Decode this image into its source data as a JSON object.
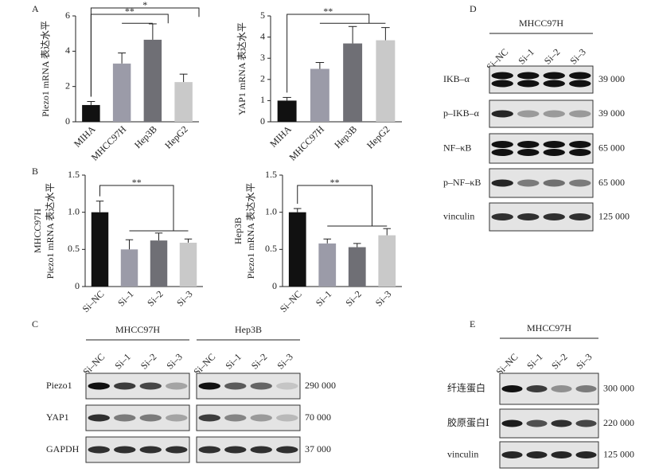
{
  "panel_labels": [
    "A",
    "B",
    "C",
    "D",
    "E"
  ],
  "chart_data": [
    {
      "type": "bar",
      "ylabel": [
        "Piezo1 mRNA 表达水平"
      ],
      "categories": [
        "MIHA",
        "MHCC97H",
        "Hep3B",
        "HepG2"
      ],
      "values": [
        0.95,
        3.3,
        4.65,
        2.25
      ],
      "errors": [
        0.2,
        0.6,
        0.9,
        0.45
      ],
      "colors": [
        "#111111",
        "#9b9ba8",
        "#6f6f75",
        "#c9c9c9"
      ],
      "ylim": [
        0,
        6
      ],
      "yticks": [
        0,
        2,
        4,
        6
      ],
      "annotations": [
        "**",
        "*"
      ]
    },
    {
      "type": "bar",
      "ylabel": [
        "YAP1 mRNA 表达水平"
      ],
      "categories": [
        "MIHA",
        "MHCC97H",
        "Hep3B",
        "HepG2"
      ],
      "values": [
        1.0,
        2.5,
        3.7,
        3.85
      ],
      "errors": [
        0.15,
        0.3,
        0.8,
        0.6
      ],
      "colors": [
        "#111111",
        "#9b9ba8",
        "#6f6f75",
        "#c9c9c9"
      ],
      "ylim": [
        0,
        5
      ],
      "yticks": [
        0,
        1,
        2,
        3,
        4,
        5
      ],
      "annotations": [
        "**"
      ]
    },
    {
      "type": "bar",
      "ylabel": [
        "MHCC97H",
        "Piezo1 mRNA 表达水平"
      ],
      "categories": [
        "Si–NC",
        "Si–1",
        "Si–2",
        "Si–3"
      ],
      "values": [
        1.0,
        0.5,
        0.62,
        0.59
      ],
      "errors": [
        0.15,
        0.13,
        0.1,
        0.05
      ],
      "colors": [
        "#111111",
        "#9b9ba8",
        "#6f6f75",
        "#c9c9c9"
      ],
      "ylim": [
        0,
        1.5
      ],
      "yticks": [
        0,
        0.5,
        {
          "value": 1,
          "label": "1.0"
        },
        1.5
      ],
      "annotations": [
        "**"
      ]
    },
    {
      "type": "bar",
      "ylabel": [
        "Hep3B",
        "Piezo1 mRNA 表达水平"
      ],
      "categories": [
        "Si–NC",
        "Si–1",
        "Si–2",
        "Si–3"
      ],
      "values": [
        1.0,
        0.58,
        0.53,
        0.69
      ],
      "errors": [
        0.05,
        0.06,
        0.05,
        0.09
      ],
      "colors": [
        "#111111",
        "#9b9ba8",
        "#6f6f75",
        "#c9c9c9"
      ],
      "ylim": [
        0,
        1.5
      ],
      "yticks": [
        0,
        0.5,
        {
          "value": 1,
          "label": "1.0"
        },
        1.5
      ],
      "annotations": [
        "**"
      ]
    }
  ],
  "blots": {
    "lanes": [
      "Si–NC",
      "Si–1",
      "Si–2",
      "Si–3"
    ],
    "C": {
      "groups": [
        "MHCC97H",
        "Hep3B"
      ],
      "rows": [
        {
          "label": "Piezo1",
          "mw": "290 000"
        },
        {
          "label": "YAP1",
          "mw": "70 000"
        },
        {
          "label": "GAPDH",
          "mw": "37 000"
        }
      ]
    },
    "D": {
      "groups": [
        "MHCC97H"
      ],
      "rows": [
        {
          "label": "IKB–α",
          "mw": "39 000"
        },
        {
          "label": "p–IKB–α",
          "mw": "39 000"
        },
        {
          "label": "NF–κB",
          "mw": "65 000"
        },
        {
          "label": "p–NF–κB",
          "mw": "65 000"
        },
        {
          "label": "vinculin",
          "mw": "125 000"
        }
      ]
    },
    "E": {
      "groups": [
        "MHCC97H"
      ],
      "rows": [
        {
          "label": "纤连蛋白",
          "mw": "300 000"
        },
        {
          "label": "胶原蛋白Ⅰ",
          "mw": "220 000"
        },
        {
          "label": "vinculin",
          "mw": "125 000"
        }
      ]
    }
  }
}
